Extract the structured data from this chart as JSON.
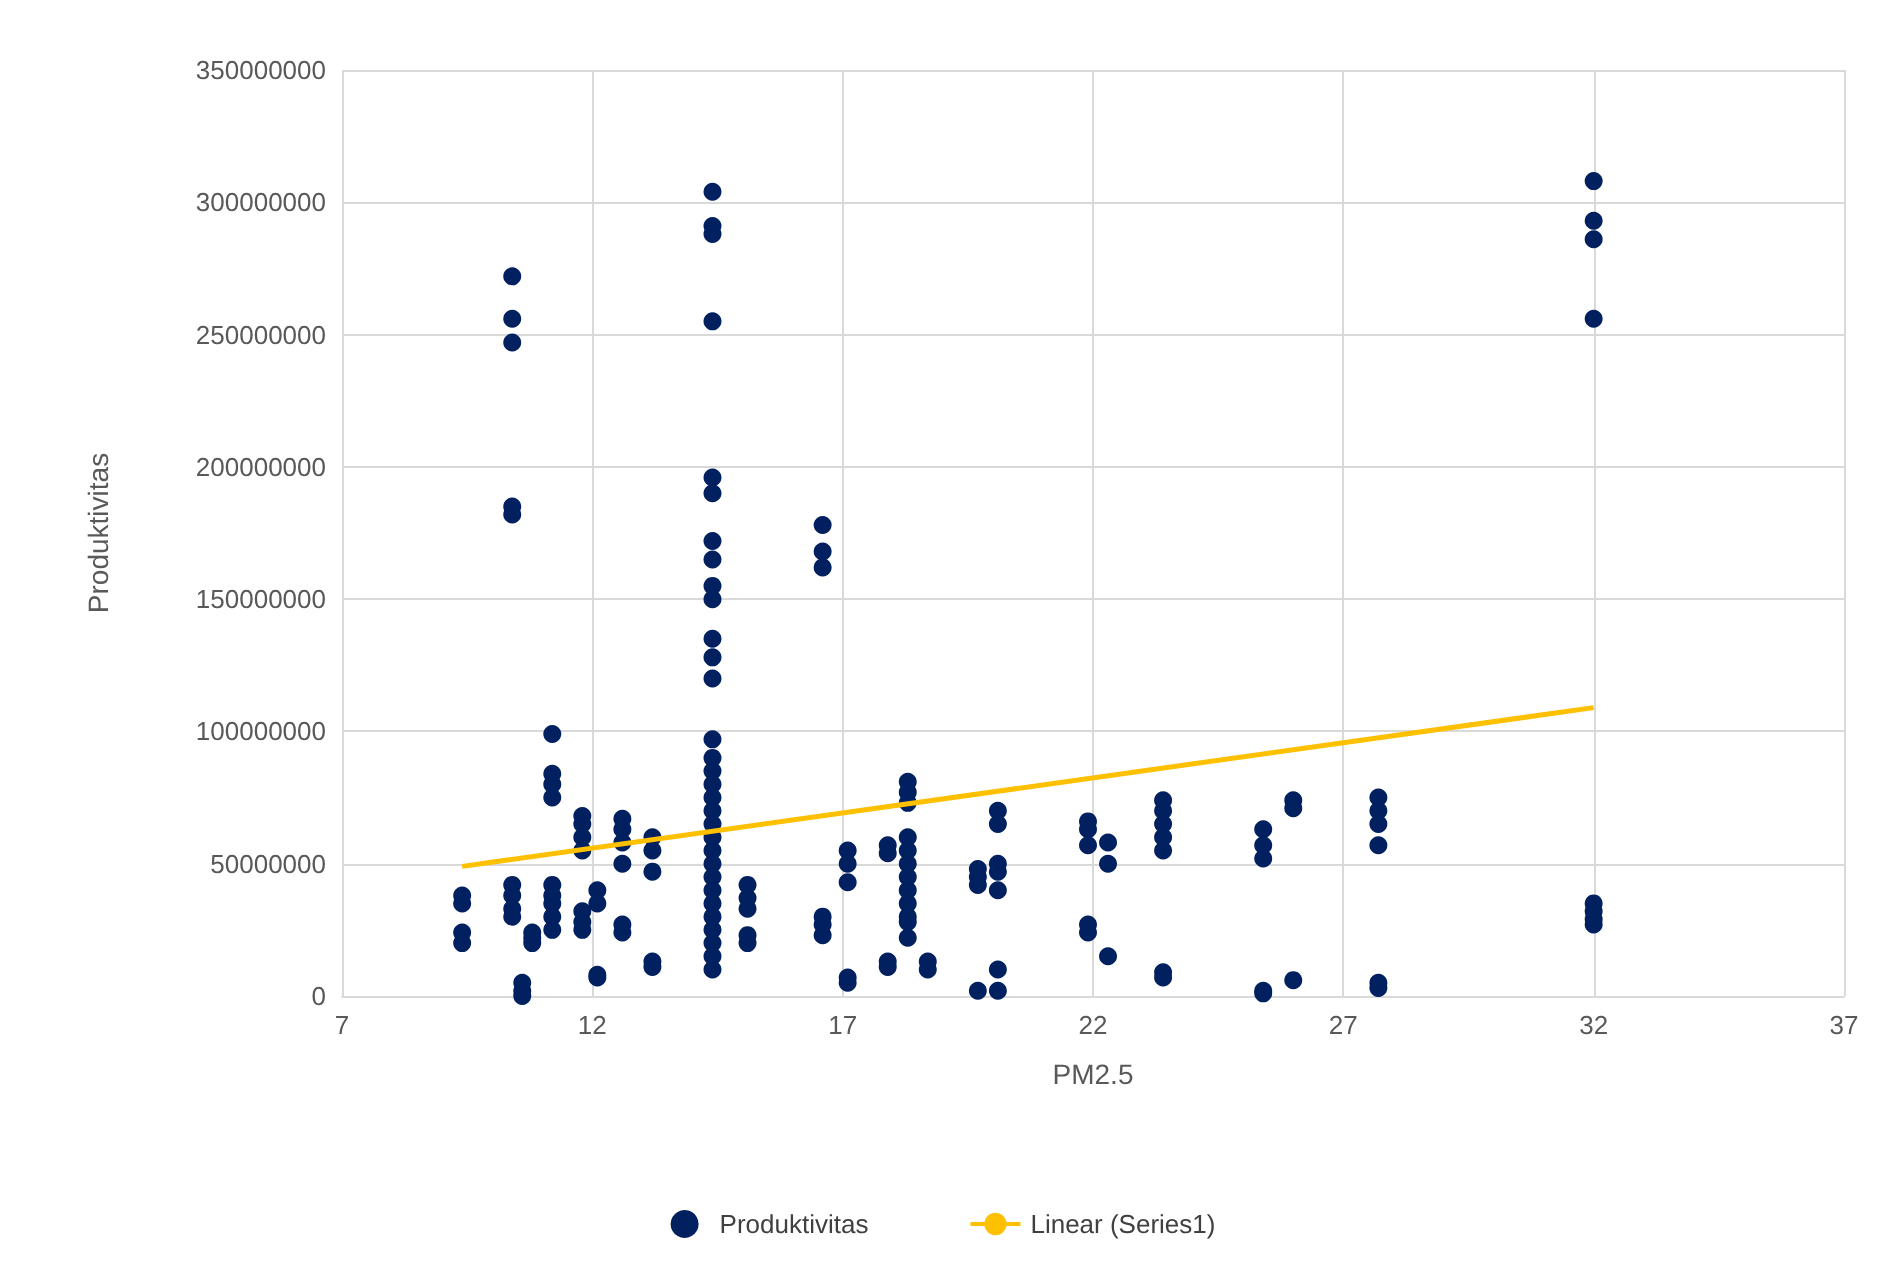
{
  "chart_data": {
    "type": "scatter",
    "xlabel": "PM2.5",
    "ylabel": "Produktivitas",
    "xlim": [
      7,
      37
    ],
    "xticks": [
      7,
      12,
      17,
      22,
      27,
      32,
      37
    ],
    "ylim": [
      0,
      350000000
    ],
    "yticks": [
      0,
      50000000,
      100000000,
      150000000,
      200000000,
      250000000,
      300000000,
      350000000
    ],
    "grid": true,
    "legend": "bottom",
    "series": [
      {
        "name": "Produktivitas",
        "color": "#002060",
        "marker": "circle",
        "x": [
          9.4,
          9.4,
          9.4,
          9.4,
          10.4,
          10.4,
          10.4,
          10.4,
          10.4,
          10.4,
          10.4,
          10.4,
          10.4,
          10.6,
          10.6,
          10.6,
          10.8,
          10.8,
          10.8,
          11.2,
          11.2,
          11.2,
          11.2,
          11.2,
          11.2,
          11.2,
          11.2,
          11.2,
          11.8,
          11.8,
          11.8,
          11.8,
          11.8,
          11.8,
          11.8,
          12.1,
          12.1,
          12.1,
          12.1,
          12.6,
          12.6,
          12.6,
          12.6,
          12.6,
          12.6,
          13.2,
          13.2,
          13.2,
          13.2,
          13.2,
          14.4,
          14.4,
          14.4,
          14.4,
          14.4,
          14.4,
          14.4,
          14.4,
          14.4,
          14.4,
          14.4,
          14.4,
          14.4,
          14.4,
          14.4,
          14.4,
          14.4,
          14.4,
          14.4,
          14.4,
          14.4,
          14.4,
          14.4,
          14.4,
          14.4,
          14.4,
          14.4,
          14.4,
          14.4,
          14.4,
          14.4,
          15.1,
          15.1,
          15.1,
          15.1,
          15.1,
          16.6,
          16.6,
          16.6,
          16.6,
          16.6,
          16.6,
          17.1,
          17.1,
          17.1,
          17.1,
          17.1,
          17.9,
          17.9,
          17.9,
          17.9,
          18.3,
          18.3,
          18.3,
          18.3,
          18.3,
          18.3,
          18.3,
          18.3,
          18.3,
          18.3,
          18.3,
          18.3,
          18.7,
          18.7,
          19.7,
          19.7,
          19.7,
          19.7,
          20.1,
          20.1,
          20.1,
          20.1,
          20.1,
          20.1,
          20.1,
          21.9,
          21.9,
          21.9,
          21.9,
          21.9,
          22.3,
          22.3,
          22.3,
          23.4,
          23.4,
          23.4,
          23.4,
          23.4,
          23.4,
          23.4,
          25.4,
          25.4,
          25.4,
          25.4,
          25.4,
          26.0,
          26.0,
          26.0,
          27.7,
          27.7,
          27.7,
          27.7,
          27.7,
          27.7,
          32,
          32,
          32,
          32,
          32,
          32,
          32,
          32
        ],
        "values": [
          38000000,
          35000000,
          24000000,
          20000000,
          272000000,
          256000000,
          247000000,
          185000000,
          182000000,
          42000000,
          38000000,
          33000000,
          30000000,
          0,
          2000000,
          5000000,
          24000000,
          22000000,
          20000000,
          99000000,
          84000000,
          80000000,
          75000000,
          42000000,
          38000000,
          35000000,
          30000000,
          25000000,
          68000000,
          65000000,
          60000000,
          55000000,
          32000000,
          28000000,
          25000000,
          40000000,
          35000000,
          8000000,
          7000000,
          67000000,
          63000000,
          58000000,
          50000000,
          27000000,
          24000000,
          60000000,
          55000000,
          47000000,
          13000000,
          11000000,
          304000000,
          291000000,
          288000000,
          255000000,
          196000000,
          190000000,
          172000000,
          165000000,
          155000000,
          150000000,
          135000000,
          128000000,
          120000000,
          97000000,
          90000000,
          85000000,
          80000000,
          75000000,
          70000000,
          65000000,
          60000000,
          55000000,
          50000000,
          45000000,
          40000000,
          35000000,
          30000000,
          25000000,
          20000000,
          15000000,
          10000000,
          42000000,
          37000000,
          33000000,
          23000000,
          20000000,
          178000000,
          168000000,
          162000000,
          30000000,
          27000000,
          23000000,
          55000000,
          50000000,
          43000000,
          7000000,
          5000000,
          57000000,
          54000000,
          13000000,
          11000000,
          81000000,
          77000000,
          73000000,
          60000000,
          55000000,
          50000000,
          45000000,
          40000000,
          35000000,
          30000000,
          28000000,
          22000000,
          13000000,
          10000000,
          48000000,
          45000000,
          42000000,
          2000000,
          70000000,
          65000000,
          50000000,
          47000000,
          40000000,
          10000000,
          2000000,
          66000000,
          63000000,
          57000000,
          27000000,
          24000000,
          58000000,
          50000000,
          15000000,
          74000000,
          70000000,
          65000000,
          60000000,
          55000000,
          9000000,
          7000000,
          63000000,
          57000000,
          52000000,
          2000000,
          1000000,
          74000000,
          71000000,
          6000000,
          75000000,
          70000000,
          65000000,
          57000000,
          5000000,
          3000000,
          308000000,
          293000000,
          286000000,
          256000000,
          35000000,
          32000000,
          29000000,
          27000000
        ]
      },
      {
        "name": "Linear (Series1)",
        "color": "#ffc000",
        "type": "line",
        "marker": "none",
        "x": [
          9.4,
          32
        ],
        "values": [
          49000000,
          109000000
        ]
      }
    ]
  }
}
